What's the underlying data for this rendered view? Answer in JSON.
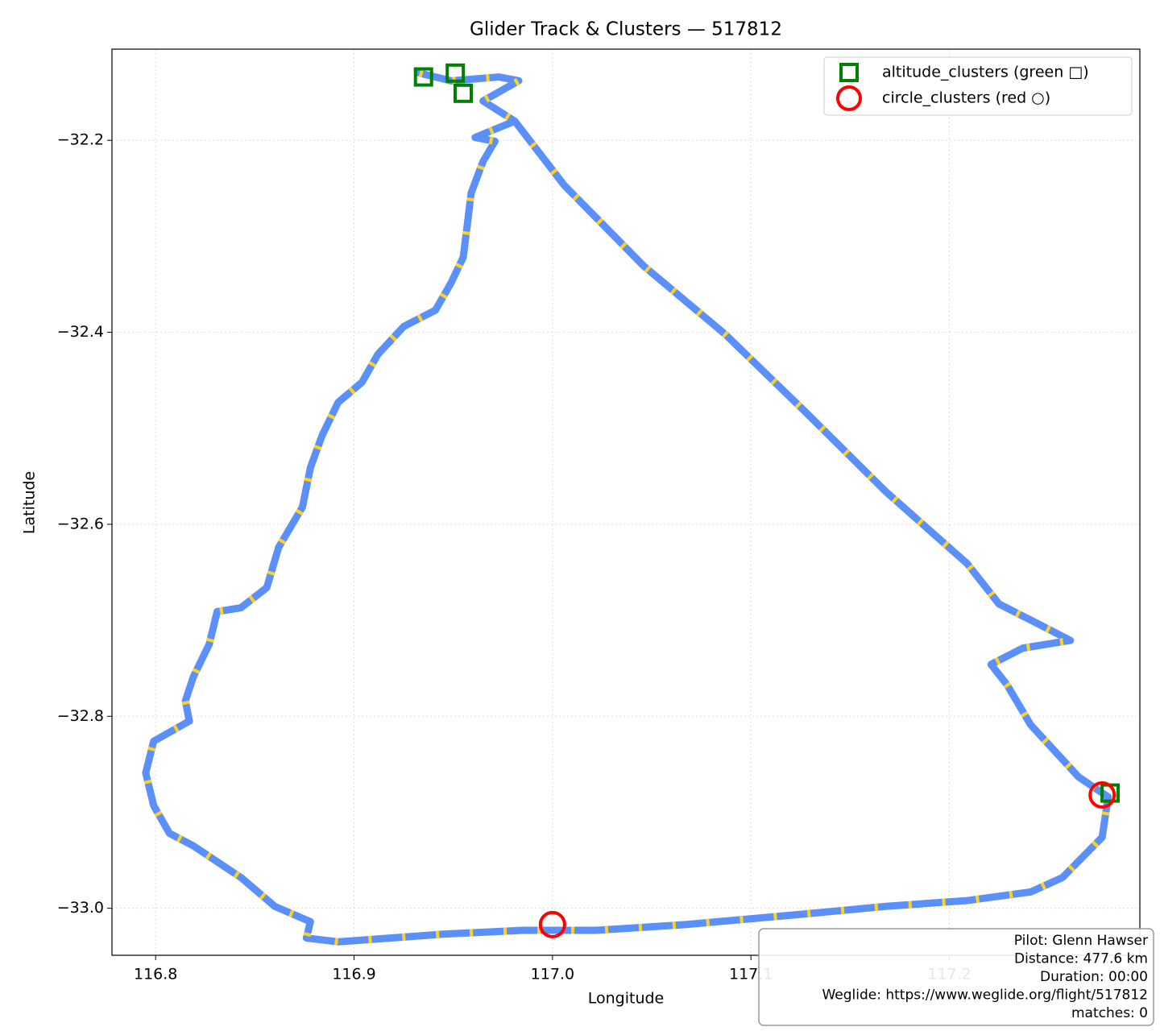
{
  "chart_data": {
    "type": "line",
    "title": "Glider Track & Clusters — 517812",
    "xlabel": "Longitude",
    "ylabel": "Latitude",
    "xlim": [
      116.778,
      117.296
    ],
    "ylim": [
      -33.049,
      -32.105
    ],
    "xticks": [
      {
        "value": 116.8,
        "label": "116.8"
      },
      {
        "value": 116.9,
        "label": "116.9"
      },
      {
        "value": 117.0,
        "label": "117.0"
      },
      {
        "value": 117.1,
        "label": "117.1"
      },
      {
        "value": 117.2,
        "label": "117.2"
      }
    ],
    "yticks": [
      {
        "value": -32.2,
        "label": "−32.2"
      },
      {
        "value": -32.4,
        "label": "−32.4"
      },
      {
        "value": -32.6,
        "label": "−32.6"
      },
      {
        "value": -32.8,
        "label": "−32.8"
      },
      {
        "value": -33.0,
        "label": "−33.0"
      }
    ],
    "grid": true,
    "legend": "upper right",
    "track": {
      "color": "#5b8ff9",
      "thermal_color": "#ffd21f",
      "x": [
        116.933,
        116.949,
        116.973,
        116.983,
        116.965,
        116.981,
        116.961,
        116.971,
        116.965,
        116.959,
        116.957,
        116.955,
        116.949,
        116.941,
        116.925,
        116.912,
        116.904,
        116.892,
        116.884,
        116.878,
        116.874,
        116.862,
        116.856,
        116.843,
        116.831,
        116.827,
        116.819,
        116.815,
        116.817,
        116.799,
        116.795,
        116.799,
        116.807,
        116.819,
        116.843,
        116.86,
        116.878,
        116.876,
        116.892,
        116.945,
        116.985,
        117.022,
        117.067,
        117.127,
        117.168,
        117.209,
        117.241,
        117.257,
        117.277,
        117.28,
        117.265,
        117.241,
        117.229,
        117.221,
        117.237,
        117.261,
        117.245,
        117.225,
        117.209,
        117.168,
        117.127,
        117.087,
        117.046,
        117.006,
        116.981
      ],
      "y": [
        -32.13,
        -32.138,
        -32.134,
        -32.138,
        -32.159,
        -32.18,
        -32.197,
        -32.201,
        -32.222,
        -32.255,
        -32.289,
        -32.322,
        -32.348,
        -32.377,
        -32.394,
        -32.423,
        -32.452,
        -32.473,
        -32.507,
        -32.541,
        -32.582,
        -32.624,
        -32.666,
        -32.687,
        -32.691,
        -32.725,
        -32.759,
        -32.784,
        -32.805,
        -32.826,
        -32.859,
        -32.893,
        -32.922,
        -32.935,
        -32.968,
        -32.998,
        -33.014,
        -33.031,
        -33.035,
        -33.027,
        -33.023,
        -33.023,
        -33.017,
        -33.006,
        -32.998,
        -32.992,
        -32.983,
        -32.968,
        -32.926,
        -32.884,
        -32.863,
        -32.809,
        -32.767,
        -32.746,
        -32.729,
        -32.721,
        -32.704,
        -32.683,
        -32.641,
        -32.566,
        -32.482,
        -32.402,
        -32.331,
        -32.247,
        -32.18
      ]
    },
    "series": [
      {
        "name": "altitude_clusters (green □)",
        "color": "#008000",
        "marker": "square",
        "x": [
          116.935,
          116.951,
          116.955,
          117.281
        ],
        "values": [
          -32.134,
          -32.13,
          -32.151,
          -32.88
        ]
      },
      {
        "name": "circle_clusters (red ○)",
        "color": "#ff0000",
        "marker": "circle",
        "x": [
          117.277,
          117.0
        ],
        "values": [
          -32.882,
          -33.017
        ]
      }
    ],
    "info": [
      "Pilot: Glenn Hawser",
      "Distance: 477.6 km",
      "Duration: 00:00",
      "Weglide: https://www.weglide.org/flight/517812",
      "matches: 0"
    ]
  }
}
